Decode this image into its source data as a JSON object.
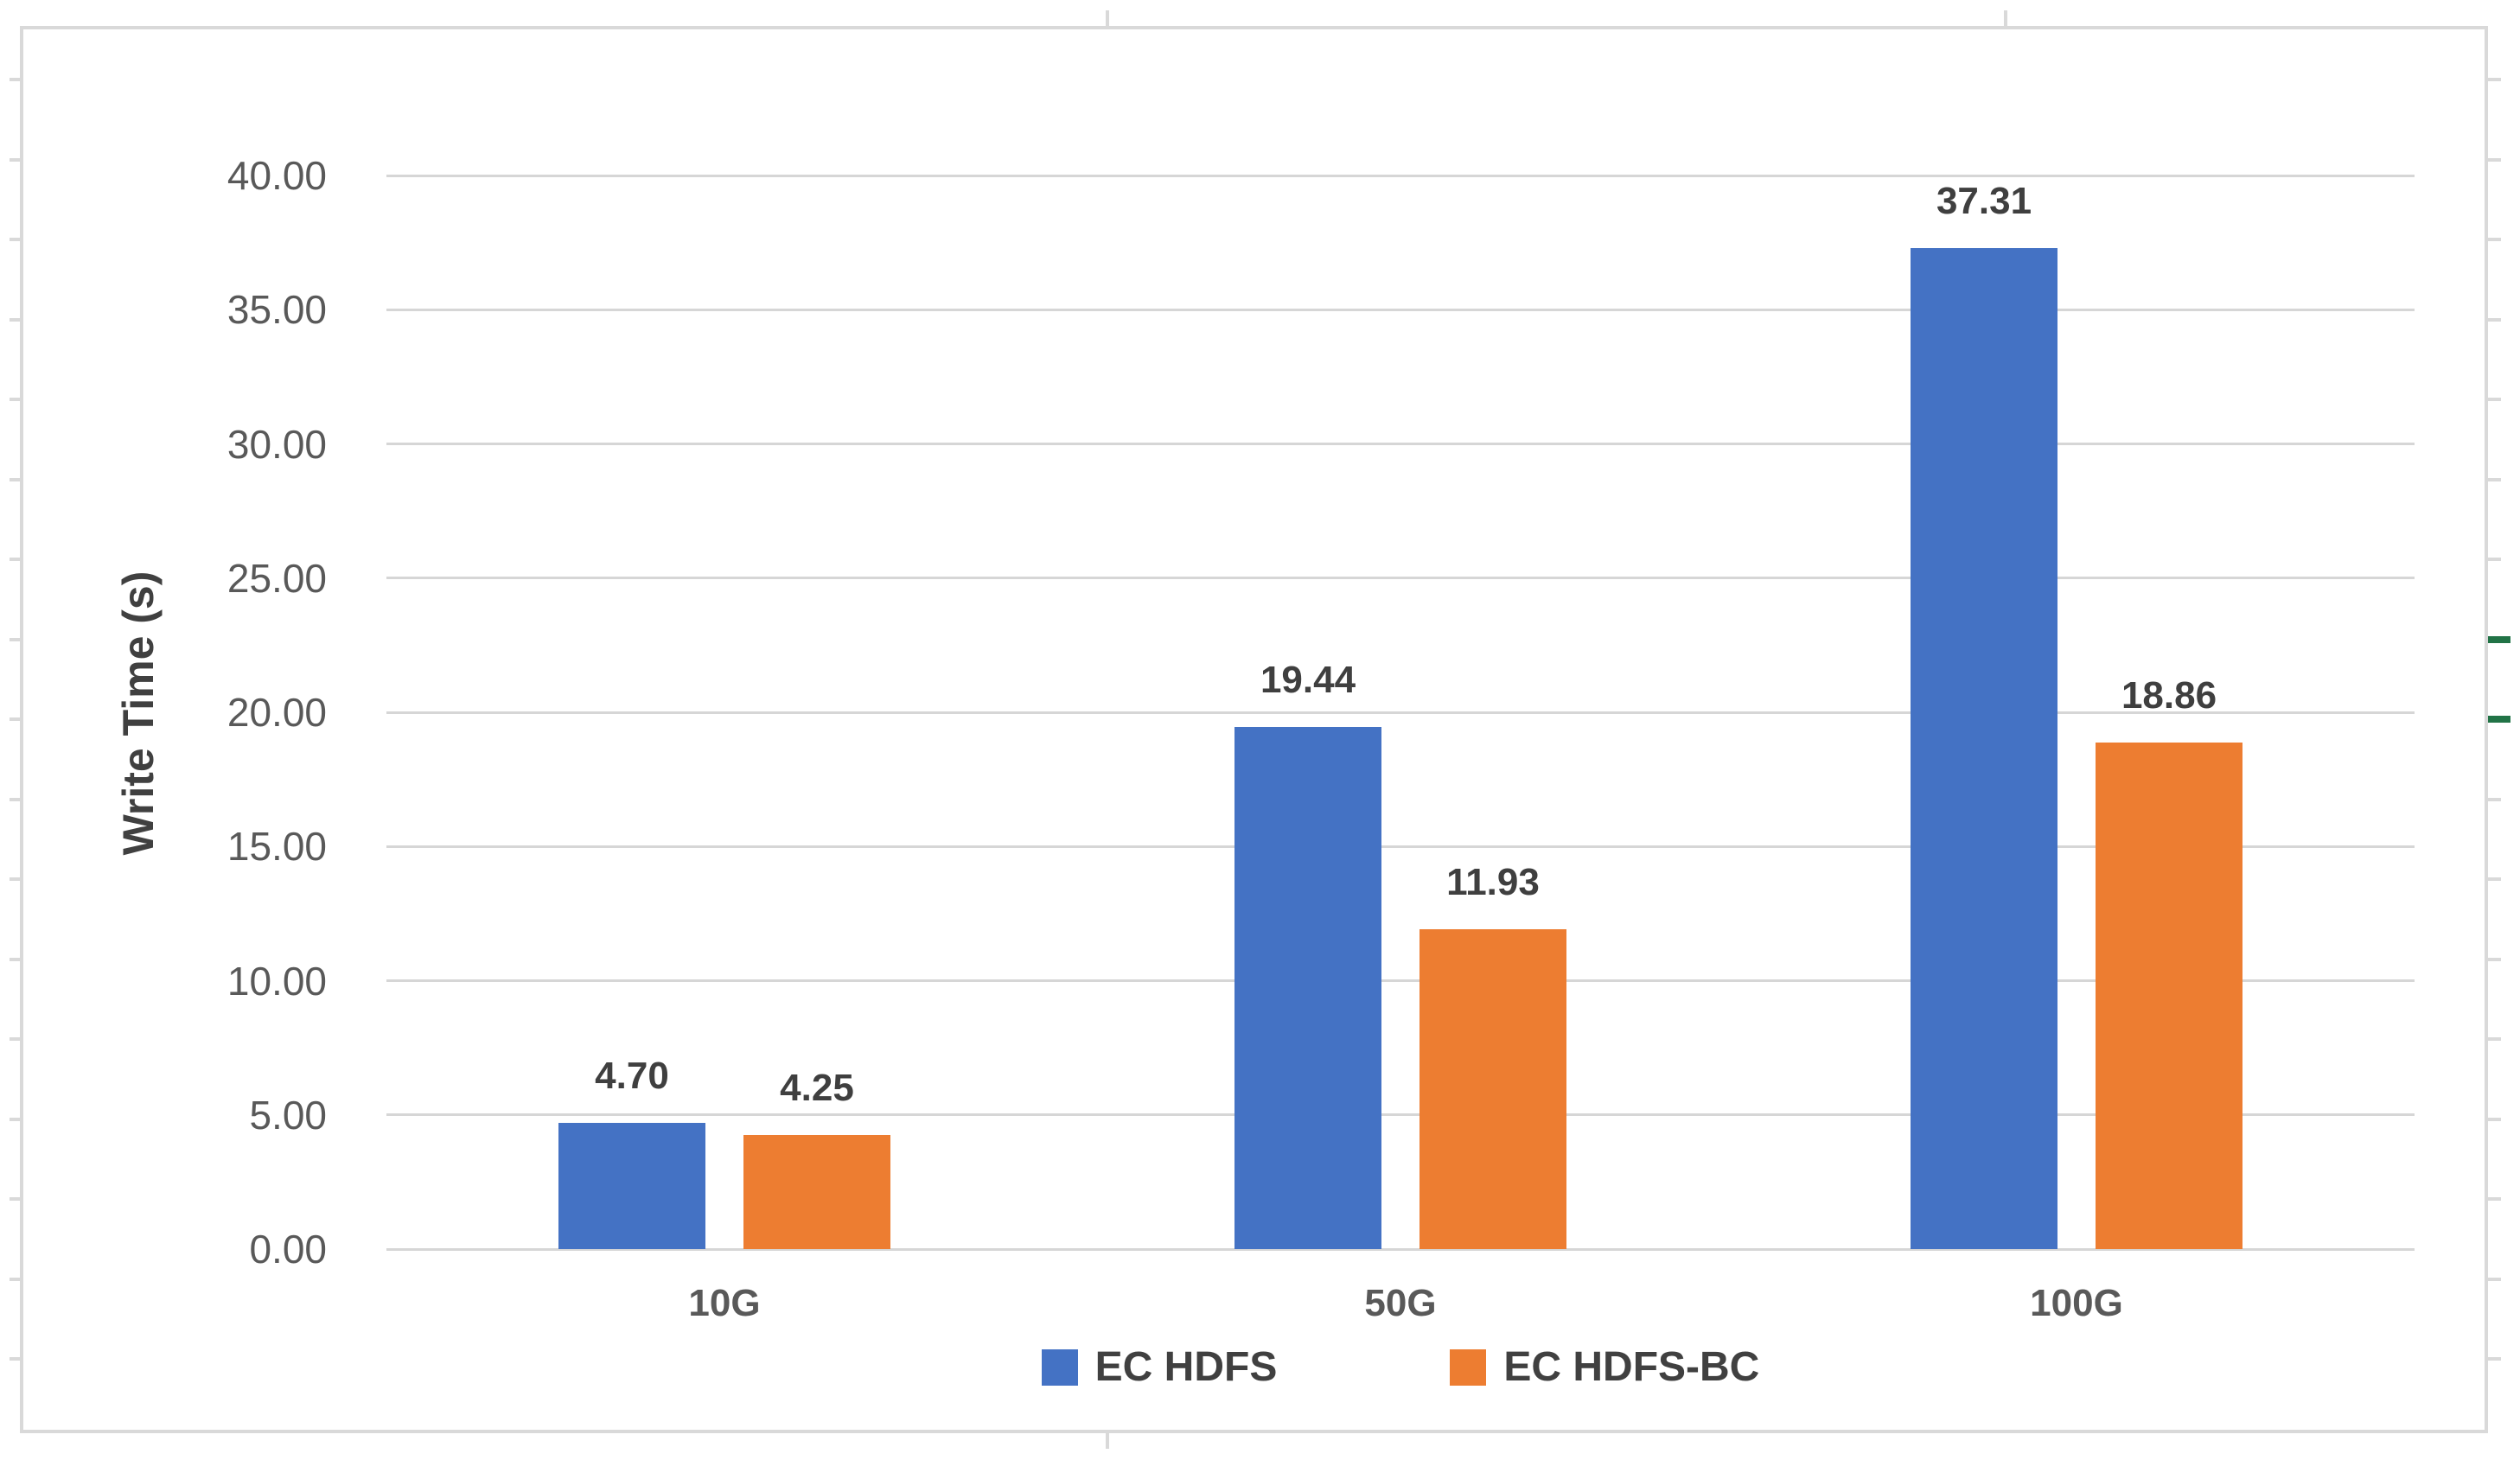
{
  "chart_data": {
    "type": "bar",
    "title": "",
    "xlabel": "",
    "ylabel": "Write Time (s)",
    "categories": [
      "10G",
      "50G",
      "100G"
    ],
    "series": [
      {
        "name": "EC HDFS",
        "color": "#4472C4",
        "values": [
          4.7,
          19.44,
          37.31
        ],
        "labels": [
          "4.70",
          "19.44",
          "37.31"
        ]
      },
      {
        "name": "EC HDFS-BC",
        "color": "#ED7D31",
        "values": [
          4.25,
          11.93,
          18.86
        ],
        "labels": [
          "4.25",
          "11.93",
          "18.86"
        ]
      }
    ],
    "y_axis": {
      "min": 0,
      "max": 40,
      "step": 5,
      "tick_labels": [
        "0.00",
        "5.00",
        "10.00",
        "15.00",
        "20.00",
        "25.00",
        "30.00",
        "35.00",
        "40.00"
      ]
    },
    "grid": true,
    "legend_position": "bottom"
  },
  "colors": {
    "gridline": "#d6d6d6",
    "frame_border": "#d9d9d9",
    "edge_tick": "#d9d9d9",
    "green_dash": "#217346",
    "axis_tick_label": "#595959",
    "category_label": "#595959",
    "value_label": "#3f3f3f",
    "axis_title": "#404040",
    "legend_text": "#404040"
  }
}
